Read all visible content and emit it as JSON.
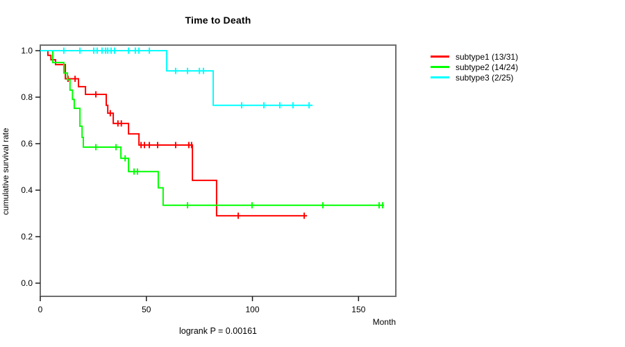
{
  "title": "Time to Death",
  "axes": {
    "ylabel": "cumulative survival rate",
    "xlabel": "Month"
  },
  "footer": "logrank P = 0.00161",
  "chart_data": {
    "type": "line",
    "subtype": "kaplan-meier-step",
    "title": "Time to Death",
    "xlabel": "Month",
    "ylabel": "cumulative survival rate",
    "xlim": [
      0,
      167
    ],
    "ylim": [
      0,
      1.0
    ],
    "x_ticks": [
      0,
      50,
      100,
      150
    ],
    "y_ticks": [
      0.0,
      0.2,
      0.4,
      0.6,
      0.8,
      1.0
    ],
    "grid": false,
    "legend_position": "right-outside",
    "annotation": "logrank P = 0.00161",
    "box_color": "#6e6e6e",
    "axis_color": "#1a1a1a",
    "series": [
      {
        "name": "subtype1",
        "label": "subtype1 (13/31)",
        "events": "13/31",
        "color": "#ff0000",
        "steps": [
          [
            0,
            1.0
          ],
          [
            3.6,
            0.98
          ],
          [
            5.0,
            0.961
          ],
          [
            7.2,
            0.94
          ],
          [
            11.8,
            0.879
          ],
          [
            18.0,
            0.845
          ],
          [
            21.3,
            0.812
          ],
          [
            31.1,
            0.765
          ],
          [
            31.8,
            0.731
          ],
          [
            34.4,
            0.687
          ],
          [
            41.6,
            0.642
          ],
          [
            46.5,
            0.594
          ],
          [
            71.7,
            0.442
          ],
          [
            83.1,
            0.29
          ]
        ],
        "end_month": 125.7,
        "censors": [
          [
            13.1,
            0.879
          ],
          [
            16.4,
            0.879
          ],
          [
            26.2,
            0.812
          ],
          [
            33.0,
            0.731
          ],
          [
            36.6,
            0.687
          ],
          [
            38.2,
            0.687
          ],
          [
            47.5,
            0.594
          ],
          [
            49.1,
            0.594
          ],
          [
            51.4,
            0.594
          ],
          [
            55.3,
            0.594
          ],
          [
            63.8,
            0.594
          ],
          [
            70.0,
            0.594
          ],
          [
            71.3,
            0.594
          ],
          [
            93.3,
            0.29
          ],
          [
            124.4,
            0.29
          ]
        ]
      },
      {
        "name": "subtype2",
        "label": "subtype2 (14/24)",
        "events": "14/24",
        "color": "#00ff00",
        "steps": [
          [
            0,
            1.0
          ],
          [
            5.9,
            0.949
          ],
          [
            11.1,
            0.904
          ],
          [
            12.8,
            0.875
          ],
          [
            14.0,
            0.83
          ],
          [
            15.2,
            0.79
          ],
          [
            16.0,
            0.752
          ],
          [
            18.7,
            0.675
          ],
          [
            19.7,
            0.627
          ],
          [
            20.3,
            0.585
          ],
          [
            38.0,
            0.537
          ],
          [
            41.6,
            0.48
          ],
          [
            55.6,
            0.41
          ],
          [
            57.9,
            0.335
          ]
        ],
        "end_month": 162.0,
        "censors": [
          [
            26.2,
            0.585
          ],
          [
            35.7,
            0.585
          ],
          [
            40.0,
            0.537
          ],
          [
            44.2,
            0.48
          ],
          [
            45.8,
            0.48
          ],
          [
            69.4,
            0.335
          ],
          [
            99.8,
            0.335
          ],
          [
            133.2,
            0.335
          ],
          [
            159.7,
            0.335
          ],
          [
            161.4,
            0.335
          ]
        ]
      },
      {
        "name": "subtype3",
        "label": "subtype3 (2/25)",
        "events": "2/25",
        "color": "#00ffff",
        "steps": [
          [
            0,
            1.0
          ],
          [
            59.6,
            0.913
          ],
          [
            81.5,
            0.765
          ]
        ],
        "end_month": 128.3,
        "censors": [
          [
            11.1,
            1.0
          ],
          [
            18.7,
            1.0
          ],
          [
            25.2,
            1.0
          ],
          [
            26.8,
            1.0
          ],
          [
            29.1,
            1.0
          ],
          [
            30.8,
            1.0
          ],
          [
            31.8,
            1.0
          ],
          [
            33.4,
            1.0
          ],
          [
            35.0,
            1.0
          ],
          [
            41.6,
            1.0
          ],
          [
            44.8,
            1.0
          ],
          [
            46.5,
            1.0
          ],
          [
            51.4,
            1.0
          ],
          [
            63.8,
            0.913
          ],
          [
            69.4,
            0.913
          ],
          [
            75.0,
            0.913
          ],
          [
            76.9,
            0.913
          ],
          [
            94.9,
            0.765
          ],
          [
            105.4,
            0.765
          ],
          [
            112.9,
            0.765
          ],
          [
            119.1,
            0.765
          ],
          [
            126.7,
            0.765
          ]
        ]
      }
    ]
  }
}
